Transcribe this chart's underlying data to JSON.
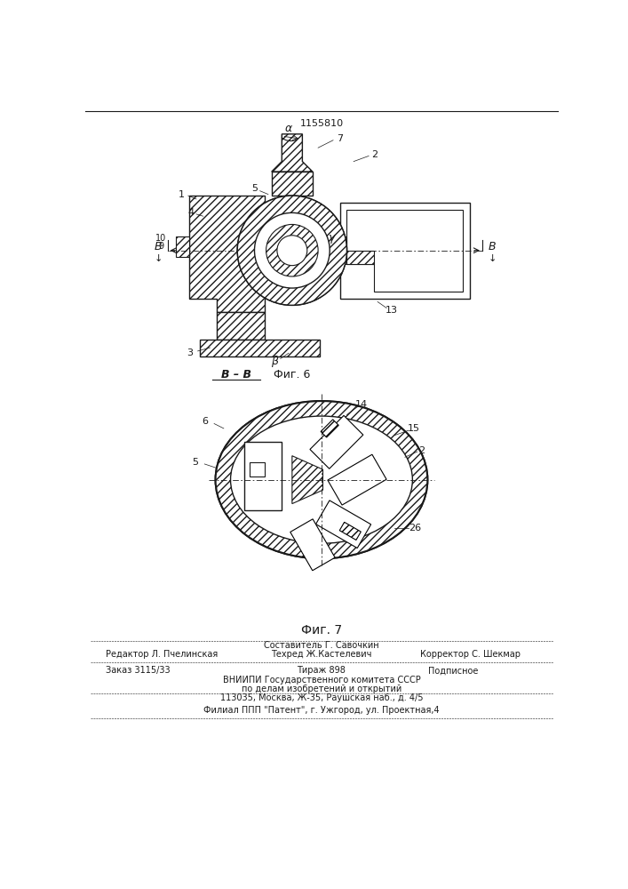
{
  "patent_number": "1155810",
  "fig6_label": "Фиг. 6",
  "fig7_label": "Фиг. 7",
  "footer": {
    "editor": "Редактор Л. Пчелинская",
    "composer_line": "Составитель Г. Савочкин",
    "techred_line": "Техред Ж.Кастелевич",
    "corrector_line": "Корректор С. Шекмар",
    "order": "Заказ 3115/33",
    "circulation": "Тираж 898",
    "subscription": "Подписное",
    "org1": "ВНИИПИ Государственного комитета СССР",
    "org2": "по делам изобретений и открытий",
    "address": "113035, Москва, Ж-35, Раушская наб., д. 4/5",
    "branch": "Филиал ППП \"Патент\", г. Ужгород, ул. Проектная,4"
  },
  "bg_color": "#ffffff",
  "line_color": "#1a1a1a"
}
